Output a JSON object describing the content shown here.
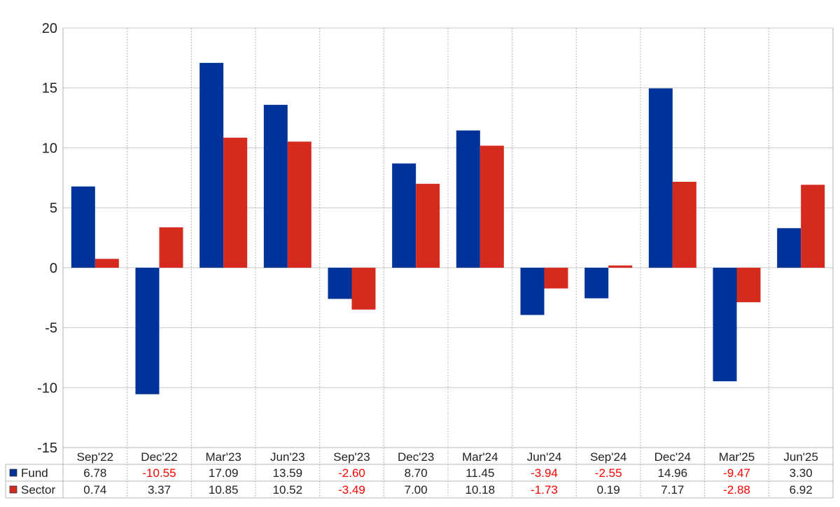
{
  "chart_data": {
    "type": "bar",
    "categories": [
      "Sep'22",
      "Dec'22",
      "Mar'23",
      "Jun'23",
      "Sep'23",
      "Dec'23",
      "Mar'24",
      "Jun'24",
      "Sep'24",
      "Dec'24",
      "Mar'25",
      "Jun'25"
    ],
    "series": [
      {
        "name": "Fund",
        "color": "#003399",
        "values": [
          6.78,
          -10.55,
          17.09,
          13.59,
          -2.6,
          8.7,
          11.45,
          -3.94,
          -2.55,
          14.96,
          -9.47,
          3.3
        ],
        "labels": [
          "6.78",
          "-10.55",
          "17.09",
          "13.59",
          "-2.60",
          "8.70",
          "11.45",
          "-3.94",
          "-2.55",
          "14.96",
          "-9.47",
          "3.30"
        ]
      },
      {
        "name": "Sector",
        "color": "#d52b1e",
        "values": [
          0.74,
          3.37,
          10.85,
          10.52,
          -3.49,
          7.0,
          10.18,
          -1.73,
          0.19,
          7.17,
          -2.88,
          6.92
        ],
        "labels": [
          "0.74",
          "3.37",
          "10.85",
          "10.52",
          "-3.49",
          "7.00",
          "10.18",
          "-1.73",
          "0.19",
          "7.17",
          "-2.88",
          "6.92"
        ]
      }
    ],
    "y_ticks": [
      "20",
      "15",
      "10",
      "5",
      "0",
      "-5",
      "-10",
      "-15"
    ],
    "ylim": [
      -15,
      20
    ],
    "grid": true,
    "legend": "data-table-left",
    "negative_value_color": "#ff0000",
    "positive_value_color": "#222222"
  }
}
